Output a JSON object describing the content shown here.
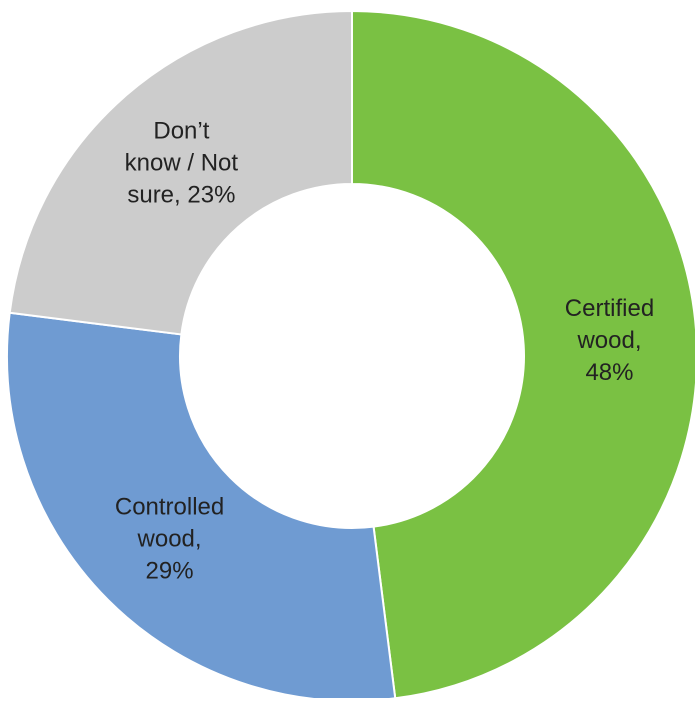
{
  "chart_data": {
    "type": "pie",
    "variant": "donut",
    "title": "",
    "slices": [
      {
        "label_lines": [
          "Certified",
          "wood,",
          "48%"
        ],
        "value": 48,
        "color": "#7ac143"
      },
      {
        "label_lines": [
          "Controlled",
          "wood,",
          "29%"
        ],
        "value": 29,
        "color": "#6f9bd2"
      },
      {
        "label_lines": [
          "Don’t",
          "know / Not",
          "sure, 23%"
        ],
        "value": 23,
        "color": "#cccccc"
      }
    ]
  }
}
